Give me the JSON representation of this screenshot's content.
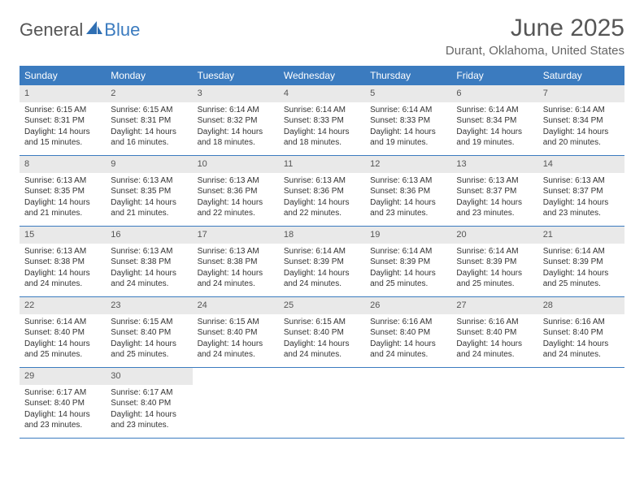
{
  "brand": {
    "word1": "General",
    "word2": "Blue",
    "gray_color": "#6a6a6a",
    "blue_color": "#2f6fb3"
  },
  "header": {
    "month_title": "June 2025",
    "location": "Durant, Oklahoma, United States"
  },
  "styling": {
    "header_bg": "#3b7bbf",
    "header_text": "#ffffff",
    "daynum_bg": "#e9e9e9",
    "row_border": "#3b7bbf",
    "body_text": "#333333",
    "background": "#ffffff",
    "body_fontsize": 10,
    "header_fontsize": 12
  },
  "day_names": [
    "Sunday",
    "Monday",
    "Tuesday",
    "Wednesday",
    "Thursday",
    "Friday",
    "Saturday"
  ],
  "weeks": [
    [
      {
        "num": "1",
        "sunrise": "Sunrise: 6:15 AM",
        "sunset": "Sunset: 8:31 PM",
        "daylight": "Daylight: 14 hours and 15 minutes."
      },
      {
        "num": "2",
        "sunrise": "Sunrise: 6:15 AM",
        "sunset": "Sunset: 8:31 PM",
        "daylight": "Daylight: 14 hours and 16 minutes."
      },
      {
        "num": "3",
        "sunrise": "Sunrise: 6:14 AM",
        "sunset": "Sunset: 8:32 PM",
        "daylight": "Daylight: 14 hours and 18 minutes."
      },
      {
        "num": "4",
        "sunrise": "Sunrise: 6:14 AM",
        "sunset": "Sunset: 8:33 PM",
        "daylight": "Daylight: 14 hours and 18 minutes."
      },
      {
        "num": "5",
        "sunrise": "Sunrise: 6:14 AM",
        "sunset": "Sunset: 8:33 PM",
        "daylight": "Daylight: 14 hours and 19 minutes."
      },
      {
        "num": "6",
        "sunrise": "Sunrise: 6:14 AM",
        "sunset": "Sunset: 8:34 PM",
        "daylight": "Daylight: 14 hours and 19 minutes."
      },
      {
        "num": "7",
        "sunrise": "Sunrise: 6:14 AM",
        "sunset": "Sunset: 8:34 PM",
        "daylight": "Daylight: 14 hours and 20 minutes."
      }
    ],
    [
      {
        "num": "8",
        "sunrise": "Sunrise: 6:13 AM",
        "sunset": "Sunset: 8:35 PM",
        "daylight": "Daylight: 14 hours and 21 minutes."
      },
      {
        "num": "9",
        "sunrise": "Sunrise: 6:13 AM",
        "sunset": "Sunset: 8:35 PM",
        "daylight": "Daylight: 14 hours and 21 minutes."
      },
      {
        "num": "10",
        "sunrise": "Sunrise: 6:13 AM",
        "sunset": "Sunset: 8:36 PM",
        "daylight": "Daylight: 14 hours and 22 minutes."
      },
      {
        "num": "11",
        "sunrise": "Sunrise: 6:13 AM",
        "sunset": "Sunset: 8:36 PM",
        "daylight": "Daylight: 14 hours and 22 minutes."
      },
      {
        "num": "12",
        "sunrise": "Sunrise: 6:13 AM",
        "sunset": "Sunset: 8:36 PM",
        "daylight": "Daylight: 14 hours and 23 minutes."
      },
      {
        "num": "13",
        "sunrise": "Sunrise: 6:13 AM",
        "sunset": "Sunset: 8:37 PM",
        "daylight": "Daylight: 14 hours and 23 minutes."
      },
      {
        "num": "14",
        "sunrise": "Sunrise: 6:13 AM",
        "sunset": "Sunset: 8:37 PM",
        "daylight": "Daylight: 14 hours and 23 minutes."
      }
    ],
    [
      {
        "num": "15",
        "sunrise": "Sunrise: 6:13 AM",
        "sunset": "Sunset: 8:38 PM",
        "daylight": "Daylight: 14 hours and 24 minutes."
      },
      {
        "num": "16",
        "sunrise": "Sunrise: 6:13 AM",
        "sunset": "Sunset: 8:38 PM",
        "daylight": "Daylight: 14 hours and 24 minutes."
      },
      {
        "num": "17",
        "sunrise": "Sunrise: 6:13 AM",
        "sunset": "Sunset: 8:38 PM",
        "daylight": "Daylight: 14 hours and 24 minutes."
      },
      {
        "num": "18",
        "sunrise": "Sunrise: 6:14 AM",
        "sunset": "Sunset: 8:39 PM",
        "daylight": "Daylight: 14 hours and 24 minutes."
      },
      {
        "num": "19",
        "sunrise": "Sunrise: 6:14 AM",
        "sunset": "Sunset: 8:39 PM",
        "daylight": "Daylight: 14 hours and 25 minutes."
      },
      {
        "num": "20",
        "sunrise": "Sunrise: 6:14 AM",
        "sunset": "Sunset: 8:39 PM",
        "daylight": "Daylight: 14 hours and 25 minutes."
      },
      {
        "num": "21",
        "sunrise": "Sunrise: 6:14 AM",
        "sunset": "Sunset: 8:39 PM",
        "daylight": "Daylight: 14 hours and 25 minutes."
      }
    ],
    [
      {
        "num": "22",
        "sunrise": "Sunrise: 6:14 AM",
        "sunset": "Sunset: 8:40 PM",
        "daylight": "Daylight: 14 hours and 25 minutes."
      },
      {
        "num": "23",
        "sunrise": "Sunrise: 6:15 AM",
        "sunset": "Sunset: 8:40 PM",
        "daylight": "Daylight: 14 hours and 25 minutes."
      },
      {
        "num": "24",
        "sunrise": "Sunrise: 6:15 AM",
        "sunset": "Sunset: 8:40 PM",
        "daylight": "Daylight: 14 hours and 24 minutes."
      },
      {
        "num": "25",
        "sunrise": "Sunrise: 6:15 AM",
        "sunset": "Sunset: 8:40 PM",
        "daylight": "Daylight: 14 hours and 24 minutes."
      },
      {
        "num": "26",
        "sunrise": "Sunrise: 6:16 AM",
        "sunset": "Sunset: 8:40 PM",
        "daylight": "Daylight: 14 hours and 24 minutes."
      },
      {
        "num": "27",
        "sunrise": "Sunrise: 6:16 AM",
        "sunset": "Sunset: 8:40 PM",
        "daylight": "Daylight: 14 hours and 24 minutes."
      },
      {
        "num": "28",
        "sunrise": "Sunrise: 6:16 AM",
        "sunset": "Sunset: 8:40 PM",
        "daylight": "Daylight: 14 hours and 24 minutes."
      }
    ],
    [
      {
        "num": "29",
        "sunrise": "Sunrise: 6:17 AM",
        "sunset": "Sunset: 8:40 PM",
        "daylight": "Daylight: 14 hours and 23 minutes."
      },
      {
        "num": "30",
        "sunrise": "Sunrise: 6:17 AM",
        "sunset": "Sunset: 8:40 PM",
        "daylight": "Daylight: 14 hours and 23 minutes."
      },
      {
        "empty": true
      },
      {
        "empty": true
      },
      {
        "empty": true
      },
      {
        "empty": true
      },
      {
        "empty": true
      }
    ]
  ]
}
